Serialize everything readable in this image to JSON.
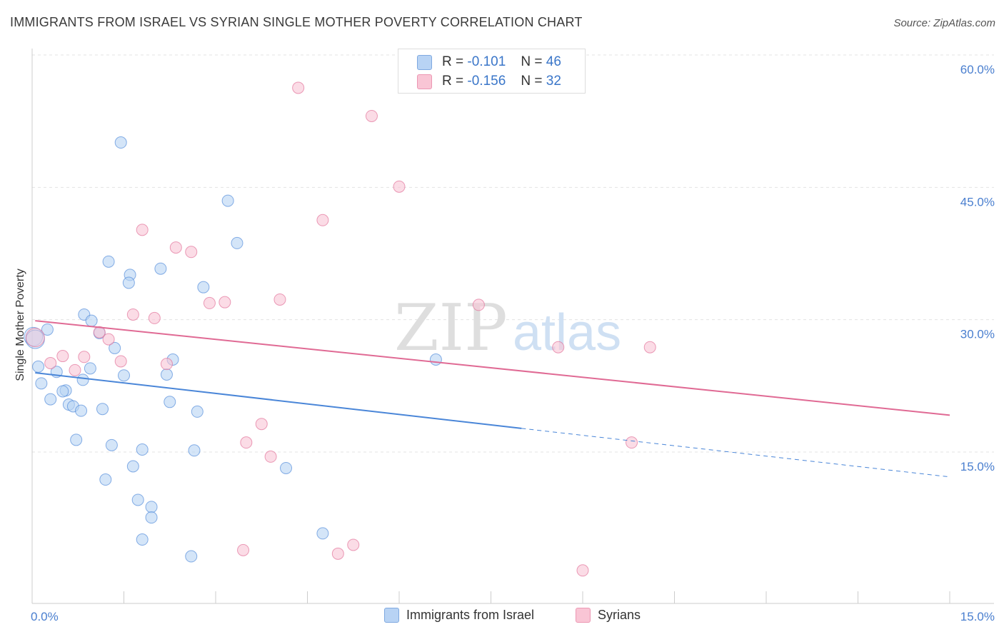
{
  "title": "IMMIGRANTS FROM ISRAEL VS SYRIAN SINGLE MOTHER POVERTY CORRELATION CHART",
  "source": "Source: ZipAtlas.com",
  "watermark": {
    "zip": "ZIP",
    "atlas": "atlas"
  },
  "legend": {
    "rows": [
      {
        "r_label": "R =",
        "r_value": "-0.101",
        "n_label": "N =",
        "n_value": "46",
        "color": "#b8d3f4"
      },
      {
        "r_label": "R =",
        "r_value": "-0.156",
        "n_label": "N =",
        "n_value": "32",
        "color": "#f9c5d5"
      }
    ]
  },
  "bottom_legend": [
    {
      "label": "Immigrants from Israel",
      "color": "#b8d3f4"
    },
    {
      "label": "Syrians",
      "color": "#f9c5d5"
    }
  ],
  "chart_data": {
    "type": "scatter",
    "title": "IMMIGRANTS FROM ISRAEL VS SYRIAN SINGLE MOTHER POVERTY CORRELATION CHART",
    "xlabel": "",
    "ylabel": "Single Mother Poverty",
    "xlim": [
      0,
      15
    ],
    "ylim": [
      0,
      60
    ],
    "x_tick_labels": [
      {
        "value": 0,
        "label": "0.0%"
      },
      {
        "value": 15,
        "label": "15.0%"
      }
    ],
    "y_tick_labels": [
      {
        "value": 15,
        "label": "15.0%"
      },
      {
        "value": 30,
        "label": "30.0%"
      },
      {
        "value": 45,
        "label": "45.0%"
      },
      {
        "value": 60,
        "label": "60.0%"
      }
    ],
    "series": [
      {
        "name": "Immigrants from Israel",
        "color": "#4a86d8",
        "fill": "#b8d3f4",
        "trend": {
          "x0": 0.05,
          "y0": 25.6,
          "x1": 8.0,
          "y1": 19.3,
          "dash_x1": 15.0,
          "dash_y1": 13.8
        },
        "points": [
          [
            1.45,
            51.7
          ],
          [
            3.2,
            45.1
          ],
          [
            3.35,
            40.3
          ],
          [
            1.25,
            38.2
          ],
          [
            2.1,
            37.4
          ],
          [
            1.6,
            36.7
          ],
          [
            1.58,
            35.8
          ],
          [
            2.8,
            35.3
          ],
          [
            0.85,
            32.2
          ],
          [
            0.97,
            31.5
          ],
          [
            0.25,
            30.5
          ],
          [
            1.1,
            30.1
          ],
          [
            1.35,
            28.4
          ],
          [
            2.3,
            27.1
          ],
          [
            6.6,
            27.1
          ],
          [
            0.1,
            26.3
          ],
          [
            0.95,
            26.1
          ],
          [
            0.4,
            25.7
          ],
          [
            1.5,
            25.3
          ],
          [
            2.2,
            25.4
          ],
          [
            0.83,
            24.8
          ],
          [
            0.15,
            24.4
          ],
          [
            0.55,
            23.6
          ],
          [
            0.5,
            23.5
          ],
          [
            0.3,
            22.6
          ],
          [
            2.25,
            22.3
          ],
          [
            0.6,
            22.0
          ],
          [
            0.67,
            21.8
          ],
          [
            0.8,
            21.3
          ],
          [
            1.15,
            21.5
          ],
          [
            2.7,
            21.2
          ],
          [
            0.72,
            18.0
          ],
          [
            1.3,
            17.4
          ],
          [
            1.8,
            16.9
          ],
          [
            2.65,
            16.8
          ],
          [
            1.65,
            15.0
          ],
          [
            4.15,
            14.8
          ],
          [
            1.2,
            13.5
          ],
          [
            1.73,
            11.2
          ],
          [
            1.95,
            10.4
          ],
          [
            1.95,
            9.2
          ],
          [
            4.75,
            7.4
          ],
          [
            1.8,
            6.7
          ],
          [
            2.6,
            4.8
          ],
          [
            0.02,
            29.7
          ],
          [
            0.05,
            29.4
          ]
        ]
      },
      {
        "name": "Syrians",
        "color": "#e06a94",
        "fill": "#f9c5d5",
        "trend": {
          "x0": 0.05,
          "y0": 31.5,
          "x1": 15.0,
          "y1": 20.8
        },
        "points": [
          [
            4.35,
            57.9
          ],
          [
            5.55,
            54.7
          ],
          [
            6.0,
            46.7
          ],
          [
            4.75,
            42.9
          ],
          [
            1.8,
            41.8
          ],
          [
            2.35,
            39.8
          ],
          [
            2.6,
            39.3
          ],
          [
            4.05,
            33.9
          ],
          [
            2.9,
            33.5
          ],
          [
            3.15,
            33.6
          ],
          [
            7.3,
            33.3
          ],
          [
            1.65,
            32.2
          ],
          [
            2.0,
            31.8
          ],
          [
            1.1,
            30.2
          ],
          [
            1.25,
            29.4
          ],
          [
            8.6,
            28.5
          ],
          [
            10.1,
            28.5
          ],
          [
            0.5,
            27.5
          ],
          [
            0.85,
            27.4
          ],
          [
            1.45,
            26.9
          ],
          [
            0.3,
            26.7
          ],
          [
            2.2,
            26.6
          ],
          [
            0.7,
            25.9
          ],
          [
            3.75,
            19.8
          ],
          [
            3.5,
            17.7
          ],
          [
            9.8,
            17.7
          ],
          [
            3.9,
            16.1
          ],
          [
            3.45,
            5.5
          ],
          [
            5.25,
            6.1
          ],
          [
            5.0,
            5.1
          ],
          [
            9.0,
            3.2
          ],
          [
            0.05,
            29.6
          ]
        ]
      }
    ]
  }
}
